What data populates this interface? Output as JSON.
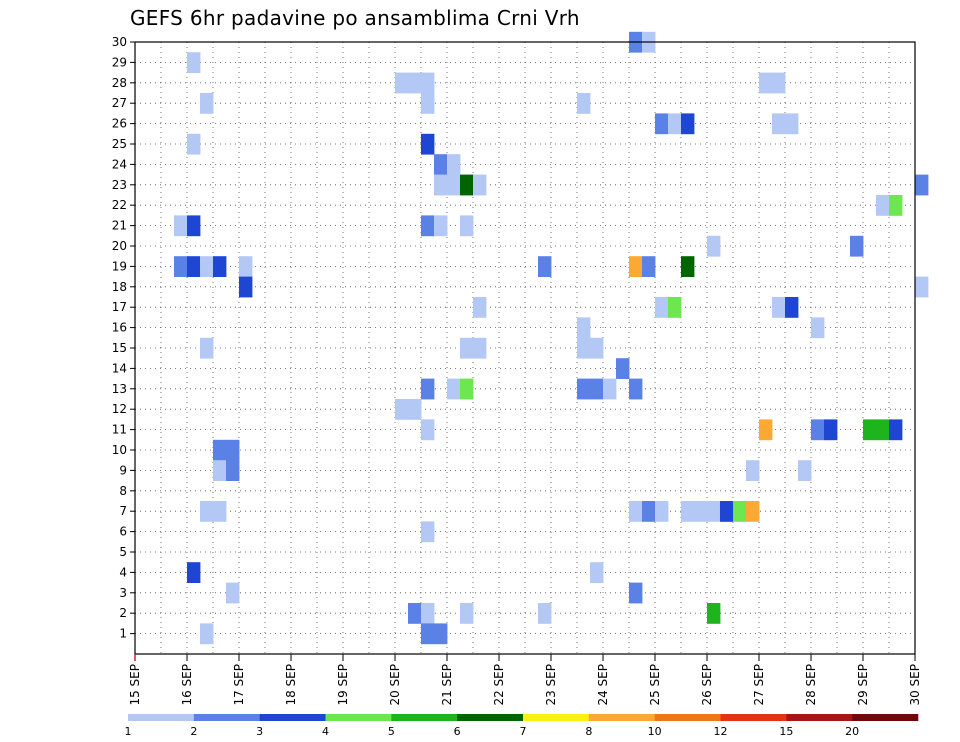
{
  "chart_data": {
    "type": "heatmap",
    "title": "GEFS 6hr padavine po ansamblima Crni Vrh",
    "xlabel": "",
    "ylabel": "",
    "x_tick_labels": [
      "15 SEP",
      "16 SEP",
      "17 SEP",
      "18 SEP",
      "19 SEP",
      "20 SEP",
      "21 SEP",
      "22 SEP",
      "23 SEP",
      "24 SEP",
      "25 SEP",
      "26 SEP",
      "27 SEP",
      "28 SEP",
      "29 SEP",
      "30 SEP"
    ],
    "x_range_days": [
      15,
      30
    ],
    "y_range": [
      0,
      30
    ],
    "y_tick_labels": [
      "1",
      "2",
      "3",
      "4",
      "5",
      "6",
      "7",
      "8",
      "9",
      "10",
      "11",
      "12",
      "13",
      "14",
      "15",
      "16",
      "17",
      "18",
      "19",
      "20",
      "21",
      "22",
      "23",
      "24",
      "25",
      "26",
      "27",
      "28",
      "29",
      "30"
    ],
    "grid": true,
    "colorbar": {
      "labels": [
        "1",
        "2",
        "3",
        "4",
        "5",
        "6",
        "7",
        "8",
        "10",
        "12",
        "15",
        "20"
      ],
      "colors": [
        "#b4c8f5",
        "#5a82e6",
        "#1e46d2",
        "#6ee650",
        "#1eb41e",
        "#006400",
        "#faf014",
        "#faaa32",
        "#f07814",
        "#e63214",
        "#aa1414",
        "#6e0a0a"
      ]
    },
    "cells": [
      {
        "day": 16.0,
        "member": 29,
        "class": 1
      },
      {
        "day": 16.25,
        "member": 27,
        "class": 1
      },
      {
        "day": 20.0,
        "member": 28,
        "class": 1
      },
      {
        "day": 20.25,
        "member": 28,
        "class": 1
      },
      {
        "day": 20.5,
        "member": 28,
        "class": 1
      },
      {
        "day": 20.5,
        "member": 27,
        "class": 1
      },
      {
        "day": 27.0,
        "member": 28,
        "class": 1
      },
      {
        "day": 27.25,
        "member": 28,
        "class": 1
      },
      {
        "day": 23.5,
        "member": 27,
        "class": 1
      },
      {
        "day": 24.5,
        "member": 30,
        "class": 2
      },
      {
        "day": 24.75,
        "member": 30,
        "class": 1
      },
      {
        "day": 25.0,
        "member": 26,
        "class": 2
      },
      {
        "day": 25.25,
        "member": 26,
        "class": 1
      },
      {
        "day": 25.5,
        "member": 26,
        "class": 3
      },
      {
        "day": 27.25,
        "member": 26,
        "class": 1
      },
      {
        "day": 27.5,
        "member": 26,
        "class": 1
      },
      {
        "day": 16.0,
        "member": 25,
        "class": 1
      },
      {
        "day": 20.5,
        "member": 25,
        "class": 3
      },
      {
        "day": 20.75,
        "member": 24,
        "class": 2
      },
      {
        "day": 21.0,
        "member": 24,
        "class": 1
      },
      {
        "day": 20.75,
        "member": 23,
        "class": 1
      },
      {
        "day": 21.0,
        "member": 23,
        "class": 1
      },
      {
        "day": 21.25,
        "member": 23,
        "class": 6
      },
      {
        "day": 21.5,
        "member": 23,
        "class": 1
      },
      {
        "day": 30.0,
        "member": 23,
        "class": 2
      },
      {
        "day": 29.25,
        "member": 22,
        "class": 1
      },
      {
        "day": 29.5,
        "member": 22,
        "class": 4
      },
      {
        "day": 15.75,
        "member": 21,
        "class": 1
      },
      {
        "day": 16.0,
        "member": 21,
        "class": 3
      },
      {
        "day": 20.5,
        "member": 21,
        "class": 2
      },
      {
        "day": 20.75,
        "member": 21,
        "class": 1
      },
      {
        "day": 21.25,
        "member": 21,
        "class": 1
      },
      {
        "day": 26.0,
        "member": 20,
        "class": 1
      },
      {
        "day": 28.75,
        "member": 20,
        "class": 2
      },
      {
        "day": 15.75,
        "member": 19,
        "class": 2
      },
      {
        "day": 16.0,
        "member": 19,
        "class": 3
      },
      {
        "day": 16.25,
        "member": 19,
        "class": 1
      },
      {
        "day": 16.5,
        "member": 19,
        "class": 3
      },
      {
        "day": 17.0,
        "member": 19,
        "class": 1
      },
      {
        "day": 22.75,
        "member": 19,
        "class": 2
      },
      {
        "day": 24.5,
        "member": 19,
        "class": 8
      },
      {
        "day": 24.75,
        "member": 19,
        "class": 2
      },
      {
        "day": 25.5,
        "member": 19,
        "class": 6
      },
      {
        "day": 17.0,
        "member": 18,
        "class": 3
      },
      {
        "day": 30.0,
        "member": 18,
        "class": 1
      },
      {
        "day": 21.5,
        "member": 17,
        "class": 1
      },
      {
        "day": 25.0,
        "member": 17,
        "class": 1
      },
      {
        "day": 25.25,
        "member": 17,
        "class": 4
      },
      {
        "day": 27.25,
        "member": 17,
        "class": 1
      },
      {
        "day": 27.5,
        "member": 17,
        "class": 3
      },
      {
        "day": 28.0,
        "member": 16,
        "class": 1
      },
      {
        "day": 23.5,
        "member": 16,
        "class": 1
      },
      {
        "day": 16.25,
        "member": 15,
        "class": 1
      },
      {
        "day": 21.25,
        "member": 15,
        "class": 1
      },
      {
        "day": 21.5,
        "member": 15,
        "class": 1
      },
      {
        "day": 23.5,
        "member": 15,
        "class": 1
      },
      {
        "day": 23.75,
        "member": 15,
        "class": 1
      },
      {
        "day": 24.25,
        "member": 14,
        "class": 2
      },
      {
        "day": 20.5,
        "member": 13,
        "class": 2
      },
      {
        "day": 21.0,
        "member": 13,
        "class": 1
      },
      {
        "day": 21.25,
        "member": 13,
        "class": 4
      },
      {
        "day": 23.5,
        "member": 13,
        "class": 2
      },
      {
        "day": 23.75,
        "member": 13,
        "class": 2
      },
      {
        "day": 24.0,
        "member": 13,
        "class": 1
      },
      {
        "day": 24.5,
        "member": 13,
        "class": 2
      },
      {
        "day": 20.0,
        "member": 12,
        "class": 1
      },
      {
        "day": 20.25,
        "member": 12,
        "class": 1
      },
      {
        "day": 20.5,
        "member": 11,
        "class": 1
      },
      {
        "day": 27.0,
        "member": 11,
        "class": 8
      },
      {
        "day": 28.0,
        "member": 11,
        "class": 2
      },
      {
        "day": 28.25,
        "member": 11,
        "class": 3
      },
      {
        "day": 29.0,
        "member": 11,
        "class": 5
      },
      {
        "day": 29.25,
        "member": 11,
        "class": 5
      },
      {
        "day": 29.5,
        "member": 11,
        "class": 3
      },
      {
        "day": 16.5,
        "member": 10,
        "class": 2
      },
      {
        "day": 16.75,
        "member": 10,
        "class": 2
      },
      {
        "day": 16.5,
        "member": 9,
        "class": 1
      },
      {
        "day": 16.75,
        "member": 9,
        "class": 2
      },
      {
        "day": 26.75,
        "member": 9,
        "class": 1
      },
      {
        "day": 27.75,
        "member": 9,
        "class": 1
      },
      {
        "day": 16.25,
        "member": 7,
        "class": 1
      },
      {
        "day": 16.5,
        "member": 7,
        "class": 1
      },
      {
        "day": 24.5,
        "member": 7,
        "class": 1
      },
      {
        "day": 24.75,
        "member": 7,
        "class": 2
      },
      {
        "day": 25.0,
        "member": 7,
        "class": 1
      },
      {
        "day": 25.5,
        "member": 7,
        "class": 1
      },
      {
        "day": 25.75,
        "member": 7,
        "class": 1
      },
      {
        "day": 26.0,
        "member": 7,
        "class": 1
      },
      {
        "day": 26.25,
        "member": 7,
        "class": 3
      },
      {
        "day": 26.5,
        "member": 7,
        "class": 4
      },
      {
        "day": 26.75,
        "member": 7,
        "class": 8
      },
      {
        "day": 20.5,
        "member": 6,
        "class": 1
      },
      {
        "day": 16.0,
        "member": 4,
        "class": 3
      },
      {
        "day": 23.75,
        "member": 4,
        "class": 1
      },
      {
        "day": 16.75,
        "member": 3,
        "class": 1
      },
      {
        "day": 24.5,
        "member": 3,
        "class": 2
      },
      {
        "day": 20.25,
        "member": 2,
        "class": 2
      },
      {
        "day": 20.5,
        "member": 2,
        "class": 1
      },
      {
        "day": 21.25,
        "member": 2,
        "class": 1
      },
      {
        "day": 22.75,
        "member": 2,
        "class": 1
      },
      {
        "day": 26.0,
        "member": 2,
        "class": 5
      },
      {
        "day": 16.25,
        "member": 1,
        "class": 1
      },
      {
        "day": 20.5,
        "member": 1,
        "class": 2
      },
      {
        "day": 20.75,
        "member": 1,
        "class": 2
      }
    ]
  }
}
